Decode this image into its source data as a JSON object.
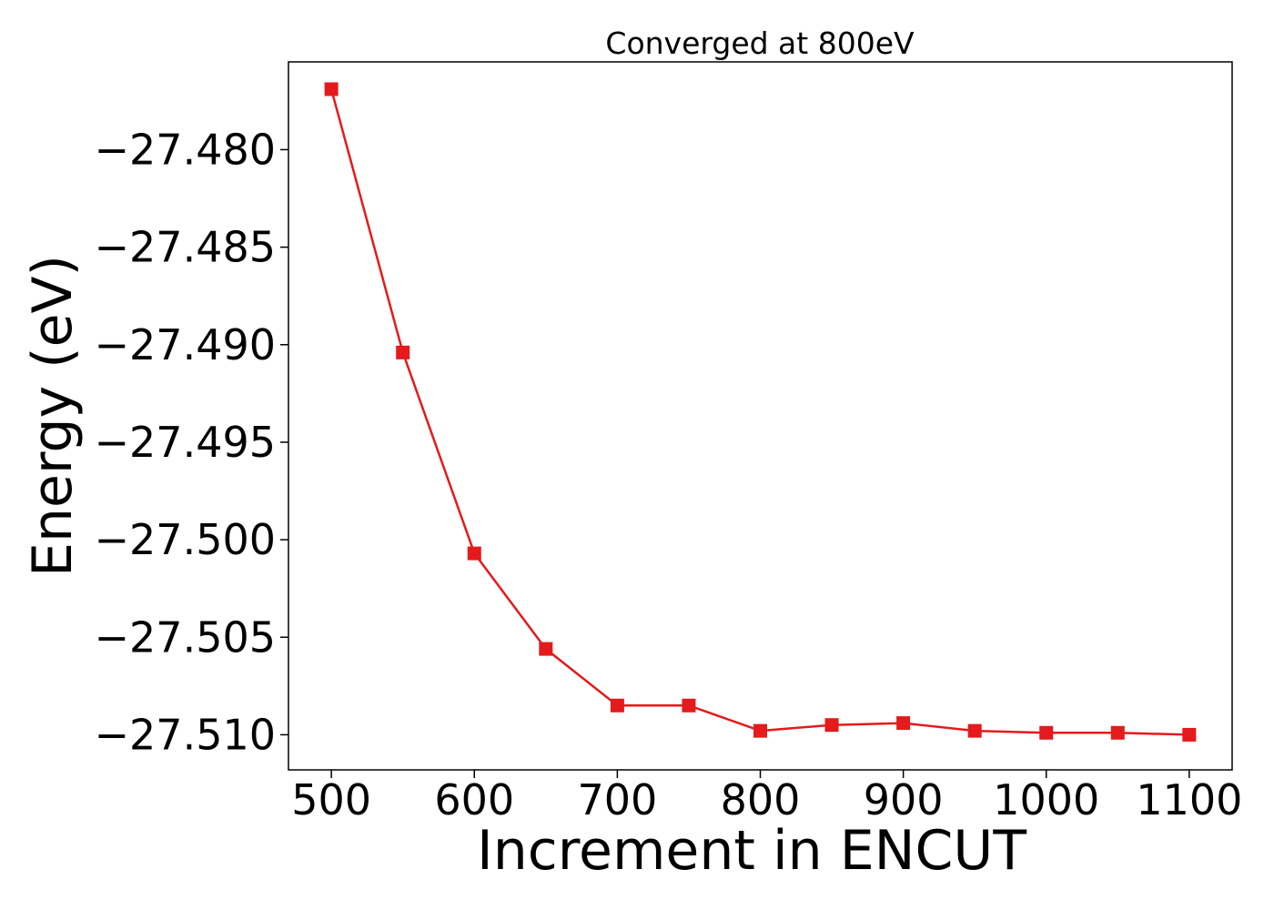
{
  "chart_data": {
    "type": "line",
    "title": "Converged at 800eV",
    "xlabel": "Increment in ENCUT",
    "ylabel": "Energy (eV)",
    "xlim": [
      470,
      1130
    ],
    "ylim": [
      -27.5118,
      -27.4755
    ],
    "xticks": [
      500,
      600,
      700,
      800,
      900,
      1000,
      1100
    ],
    "xtick_labels": [
      "500",
      "600",
      "700",
      "800",
      "900",
      "1000",
      "1100"
    ],
    "yticks": [
      -27.48,
      -27.485,
      -27.49,
      -27.495,
      -27.5,
      -27.505,
      -27.51
    ],
    "ytick_labels": [
      "−27.480",
      "−27.485",
      "−27.490",
      "−27.495",
      "−27.500",
      "−27.505",
      "−27.510"
    ],
    "grid": false,
    "series": [
      {
        "color": "#e41a1c",
        "marker": "square",
        "x": [
          500,
          550,
          600,
          650,
          700,
          750,
          800,
          850,
          900,
          950,
          1000,
          1050,
          1100
        ],
        "y": [
          -27.4769,
          -27.4904,
          -27.5007,
          -27.5056,
          -27.5085,
          -27.5085,
          -27.5098,
          -27.5095,
          -27.5094,
          -27.5098,
          -27.5099,
          -27.5099,
          -27.51
        ]
      }
    ]
  }
}
